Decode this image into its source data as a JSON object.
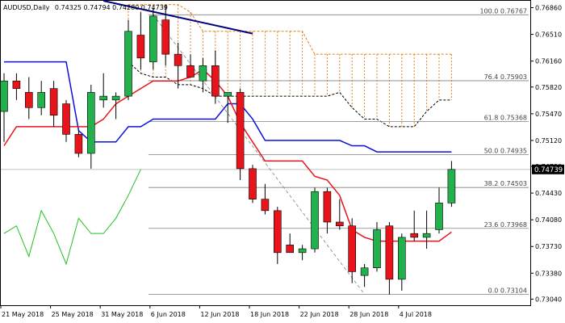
{
  "header": {
    "symbol": "AUDUSD,Daily",
    "ohlc": "0.74325 0.74794 0.74280 0.74739"
  },
  "colors": {
    "bull": "#22b14c",
    "bear": "#e8141b",
    "kijun": "#0a10d8",
    "tenkan": "#e8141b",
    "trendline": "#000080",
    "cloud": "#e07f1f",
    "chikou": "#22c022",
    "price_box": "#000000"
  },
  "chart_data": {
    "type": "candlestick",
    "title": "AUDUSD,Daily",
    "ylim": [
      0.7296,
      0.7695
    ],
    "current_price": "0.74739",
    "y_ticks": [
      "0.76860",
      "0.76510",
      "0.76160",
      "0.75820",
      "0.75470",
      "0.75120",
      "0.74780",
      "0.74430",
      "0.74080",
      "0.73730",
      "0.73380",
      "0.73040"
    ],
    "x_tick_labels": [
      {
        "label": "21 May 2018",
        "bar": 0
      },
      {
        "label": "25 May 2018",
        "bar": 4
      },
      {
        "label": "31 May 2018",
        "bar": 8
      },
      {
        "label": "6 Jun 2018",
        "bar": 12
      },
      {
        "label": "12 Jun 2018",
        "bar": 16
      },
      {
        "label": "18 Jun 2018",
        "bar": 20
      },
      {
        "label": "22 Jun 2018",
        "bar": 24
      },
      {
        "label": "28 Jun 2018",
        "bar": 28
      },
      {
        "label": "4 Jul 2018",
        "bar": 32
      }
    ],
    "candles": [
      {
        "o": 0.755,
        "h": 0.76,
        "l": 0.751,
        "c": 0.759
      },
      {
        "o": 0.759,
        "h": 0.76,
        "l": 0.7565,
        "c": 0.758
      },
      {
        "o": 0.7575,
        "h": 0.7595,
        "l": 0.754,
        "c": 0.7555
      },
      {
        "o": 0.7555,
        "h": 0.759,
        "l": 0.7545,
        "c": 0.7575
      },
      {
        "o": 0.758,
        "h": 0.759,
        "l": 0.753,
        "c": 0.7545
      },
      {
        "o": 0.756,
        "h": 0.7565,
        "l": 0.751,
        "c": 0.752
      },
      {
        "o": 0.752,
        "h": 0.7525,
        "l": 0.749,
        "c": 0.7495
      },
      {
        "o": 0.7495,
        "h": 0.7585,
        "l": 0.7475,
        "c": 0.7575
      },
      {
        "o": 0.7565,
        "h": 0.76,
        "l": 0.7555,
        "c": 0.757
      },
      {
        "o": 0.7565,
        "h": 0.7575,
        "l": 0.754,
        "c": 0.757
      },
      {
        "o": 0.757,
        "h": 0.767,
        "l": 0.7565,
        "c": 0.7655
      },
      {
        "o": 0.765,
        "h": 0.768,
        "l": 0.7605,
        "c": 0.762
      },
      {
        "o": 0.7615,
        "h": 0.7685,
        "l": 0.7605,
        "c": 0.7675
      },
      {
        "o": 0.767,
        "h": 0.769,
        "l": 0.761,
        "c": 0.7625
      },
      {
        "o": 0.7625,
        "h": 0.764,
        "l": 0.758,
        "c": 0.761
      },
      {
        "o": 0.761,
        "h": 0.7625,
        "l": 0.7595,
        "c": 0.7595
      },
      {
        "o": 0.759,
        "h": 0.762,
        "l": 0.7575,
        "c": 0.761
      },
      {
        "o": 0.761,
        "h": 0.763,
        "l": 0.756,
        "c": 0.757
      },
      {
        "o": 0.757,
        "h": 0.7575,
        "l": 0.7535,
        "c": 0.7575
      },
      {
        "o": 0.7575,
        "h": 0.758,
        "l": 0.746,
        "c": 0.7475
      },
      {
        "o": 0.7475,
        "h": 0.748,
        "l": 0.743,
        "c": 0.7435
      },
      {
        "o": 0.7435,
        "h": 0.7455,
        "l": 0.7415,
        "c": 0.742
      },
      {
        "o": 0.742,
        "h": 0.7425,
        "l": 0.735,
        "c": 0.7365
      },
      {
        "o": 0.7375,
        "h": 0.739,
        "l": 0.7365,
        "c": 0.7365
      },
      {
        "o": 0.7365,
        "h": 0.7375,
        "l": 0.7355,
        "c": 0.737
      },
      {
        "o": 0.737,
        "h": 0.745,
        "l": 0.7365,
        "c": 0.7445
      },
      {
        "o": 0.7445,
        "h": 0.745,
        "l": 0.739,
        "c": 0.7405
      },
      {
        "o": 0.7405,
        "h": 0.7435,
        "l": 0.7395,
        "c": 0.74
      },
      {
        "o": 0.74,
        "h": 0.741,
        "l": 0.7325,
        "c": 0.734
      },
      {
        "o": 0.7335,
        "h": 0.735,
        "l": 0.732,
        "c": 0.7345
      },
      {
        "o": 0.7345,
        "h": 0.7405,
        "l": 0.734,
        "c": 0.7395
      },
      {
        "o": 0.74,
        "h": 0.7405,
        "l": 0.731,
        "c": 0.733
      },
      {
        "o": 0.733,
        "h": 0.739,
        "l": 0.7315,
        "c": 0.7385
      },
      {
        "o": 0.739,
        "h": 0.742,
        "l": 0.738,
        "c": 0.7385
      },
      {
        "o": 0.7385,
        "h": 0.742,
        "l": 0.737,
        "c": 0.739
      },
      {
        "o": 0.7395,
        "h": 0.745,
        "l": 0.739,
        "c": 0.743
      },
      {
        "o": 0.743,
        "h": 0.7485,
        "l": 0.7425,
        "c": 0.7474
      }
    ],
    "kijun": [
      0.7615,
      0.7615,
      0.7615,
      0.7615,
      0.7615,
      0.7615,
      0.7525,
      0.751,
      0.751,
      0.751,
      0.753,
      0.753,
      0.754,
      0.754,
      0.754,
      0.754,
      0.754,
      0.754,
      0.756,
      0.756,
      0.754,
      0.7512,
      0.7512,
      0.7512,
      0.7512,
      0.7512,
      0.7512,
      0.7512,
      0.7505,
      0.7505,
      0.7497,
      0.7497,
      0.7497,
      0.7497,
      0.7497,
      0.7497,
      0.7497
    ],
    "tenkan": [
      0.7505,
      0.753,
      0.753,
      0.753,
      0.753,
      0.753,
      0.753,
      0.753,
      0.754,
      0.756,
      0.757,
      0.758,
      0.759,
      0.759,
      0.759,
      0.7595,
      0.7605,
      0.759,
      0.757,
      0.7535,
      0.751,
      0.7485,
      0.7485,
      0.7485,
      0.7485,
      0.7465,
      0.746,
      0.744,
      0.7395,
      0.7385,
      0.738,
      0.738,
      0.738,
      0.738,
      0.738,
      0.738,
      0.7392
    ],
    "cloud_upper": [
      0.769,
      0.769,
      0.769,
      0.769,
      0.769,
      0.768,
      0.7655,
      0.7655,
      0.7655,
      0.7655,
      0.7655,
      0.7655,
      0.7655,
      0.7655,
      0.7655,
      0.7625,
      0.7625,
      0.7625,
      0.7625,
      0.7625,
      0.7625,
      0.7625,
      0.7625,
      0.7625,
      0.7625,
      0.7625,
      0.7625
    ],
    "cloud_lower": [
      0.7615,
      0.76,
      0.7595,
      0.7595,
      0.7585,
      0.7585,
      0.758,
      0.757,
      0.757,
      0.757,
      0.757,
      0.757,
      0.757,
      0.757,
      0.757,
      0.757,
      0.757,
      0.7575,
      0.7555,
      0.754,
      0.754,
      0.753,
      0.753,
      0.753,
      0.755,
      0.7565,
      0.7565
    ],
    "cloud_start_bar": 10,
    "chikou": [
      0.739,
      0.74,
      0.736,
      0.742,
      0.739,
      0.735,
      0.741,
      0.739,
      0.739,
      0.741,
      0.744,
      0.7474
    ],
    "trendline": {
      "from": {
        "bar": 8,
        "price": 0.7695
      },
      "to": {
        "bar": 20,
        "price": 0.7652
      }
    },
    "fib_levels": [
      {
        "label": "100.0 0.76767",
        "price": 0.76767
      },
      {
        "label": "76.4 0.75903",
        "price": 0.75903
      },
      {
        "label": "61.8 0.75368",
        "price": 0.75368
      },
      {
        "label": "50.0 0.74935",
        "price": 0.74935
      },
      {
        "label": "38.2 0.74503",
        "price": 0.74503
      },
      {
        "label": "23.6 0.73968",
        "price": 0.73968
      },
      {
        "label": "0.0 0.73104",
        "price": 0.73104
      }
    ],
    "fib_from_bar": 12,
    "fib_to_bar": 29,
    "current_line_price": 0.7474
  }
}
